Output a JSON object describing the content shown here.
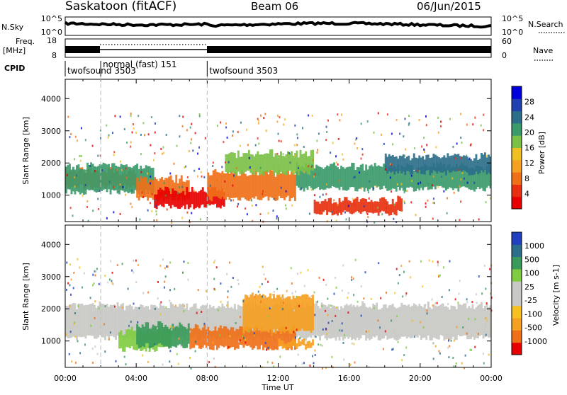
{
  "header": {
    "station": "Saskatoon (fitACF)",
    "beam": "Beam 06",
    "date": "06/Jun/2015"
  },
  "strips": {
    "nsky_label": "N.Sky",
    "nsky_ticks": [
      "10^5",
      "10^0"
    ],
    "nsearch_label": "N.Search",
    "nsearch_ticks": [
      "10^5",
      "10^0"
    ],
    "freq_label_1": "Freq.",
    "freq_label_2": "[MHz]",
    "freq_ticks": [
      "18",
      "8"
    ],
    "nave_label": "Nave",
    "nave_ticks": [
      "60",
      "0"
    ],
    "cpid_label": "CPID",
    "cpid_segments": [
      {
        "start_hour": 0,
        "end_hour": 2,
        "label": "twofsound 3503"
      },
      {
        "start_hour": 2,
        "end_hour": 8,
        "label": "normal (fast) 151"
      },
      {
        "start_hour": 8,
        "end_hour": 24,
        "label": "twofsound 3503"
      }
    ]
  },
  "chart_data": [
    {
      "type": "heatmap",
      "name": "power",
      "ylabel": "Slant Range [km]",
      "yticks": [
        "1000",
        "2000",
        "3000",
        "4000"
      ],
      "ylim": [
        180,
        4600
      ],
      "xlim": [
        0,
        24
      ],
      "colorbar_label": "Power [dB]",
      "colorbar_ticks": [
        "4",
        "8",
        "12",
        "16",
        "20",
        "24",
        "28"
      ],
      "colorbar_colors": [
        "#0000dd",
        "#2040b0",
        "#2c6e8a",
        "#3a9a6a",
        "#7cc048",
        "#f0c020",
        "#f5a020",
        "#f07018",
        "#e83010",
        "#e80000"
      ],
      "bands": [
        {
          "t": [
            0,
            4
          ],
          "range": [
            1250,
            1750
          ],
          "color": "#f07018"
        },
        {
          "t": [
            0,
            5
          ],
          "range": [
            1100,
            1900
          ],
          "color": "#3a9a6a"
        },
        {
          "t": [
            4,
            7
          ],
          "range": [
            900,
            1500
          ],
          "color": "#f07018"
        },
        {
          "t": [
            5,
            9
          ],
          "range": [
            650,
            1150
          ],
          "color": "#e80000"
        },
        {
          "t": [
            8,
            13
          ],
          "range": [
            900,
            1700
          ],
          "color": "#f07018"
        },
        {
          "t": [
            13,
            24
          ],
          "range": [
            1200,
            1900
          ],
          "color": "#3a9a6a"
        },
        {
          "t": [
            14,
            19
          ],
          "range": [
            450,
            850
          ],
          "color": "#e83010"
        },
        {
          "t": [
            9,
            14
          ],
          "range": [
            1700,
            2300
          ],
          "color": "#7cc048"
        },
        {
          "t": [
            18,
            24
          ],
          "range": [
            1700,
            2200
          ],
          "color": "#2c6e8a"
        }
      ]
    },
    {
      "type": "heatmap",
      "name": "velocity",
      "ylabel": "Slant Range [km]",
      "yticks": [
        "1000",
        "2000",
        "3000",
        "4000"
      ],
      "ylim": [
        180,
        4600
      ],
      "xlim": [
        0,
        24
      ],
      "xlabel": "Time UT",
      "xticks": [
        "00:00",
        "04:00",
        "08:00",
        "12:00",
        "16:00",
        "20:00",
        "00:00"
      ],
      "colorbar_label": "Velocity [m s-1]",
      "colorbar_ticks": [
        "1000",
        "500",
        "100",
        "25",
        "-25",
        "-100",
        "-500",
        "-1000"
      ],
      "colorbar_colors": [
        "#2040c0",
        "#2c6e8a",
        "#3a9a5a",
        "#80cc40",
        "#c8c8c4",
        "#c8c8c4",
        "#f5c020",
        "#f5a020",
        "#f07018",
        "#e80000"
      ],
      "bands": [
        {
          "t": [
            0,
            24
          ],
          "range": [
            1100,
            2100
          ],
          "color": "#c8c8c4"
        },
        {
          "t": [
            3,
            6
          ],
          "range": [
            750,
            1300
          ],
          "color": "#80cc40"
        },
        {
          "t": [
            4,
            7
          ],
          "range": [
            850,
            1500
          ],
          "color": "#3a9a5a"
        },
        {
          "t": [
            7,
            13
          ],
          "range": [
            800,
            1400
          ],
          "color": "#f07018"
        },
        {
          "t": [
            10,
            14
          ],
          "range": [
            1300,
            2400
          ],
          "color": "#f5a020"
        },
        {
          "t": [
            12,
            14
          ],
          "range": [
            800,
            1000
          ],
          "color": "#f5a020"
        }
      ]
    }
  ],
  "colors": {
    "axis": "#000000",
    "dashed_marker": "#bbbbbb"
  }
}
